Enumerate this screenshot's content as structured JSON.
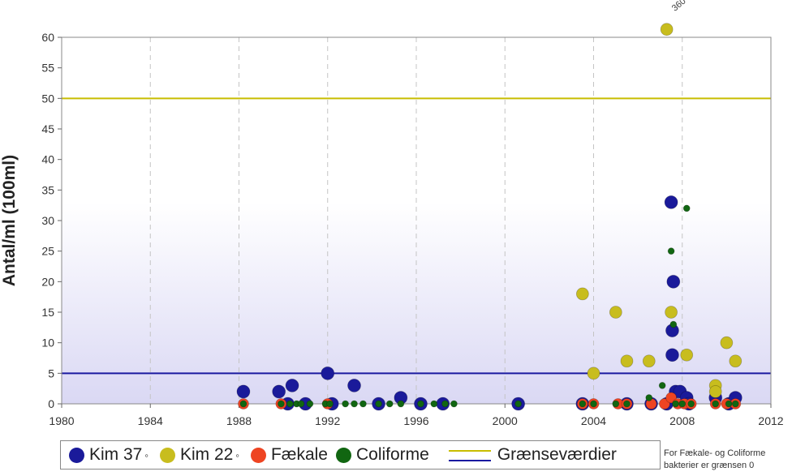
{
  "chart_data": {
    "type": "scatter",
    "ylabel": "Antal/ml (100ml)",
    "xlim": [
      1980,
      2012
    ],
    "ylim": [
      0,
      60
    ],
    "xticks": [
      1980,
      1984,
      1988,
      1992,
      1996,
      2000,
      2004,
      2008,
      2012
    ],
    "yticks": [
      0,
      5,
      10,
      15,
      20,
      25,
      30,
      35,
      40,
      45,
      50,
      55,
      60
    ],
    "grid": "vertical dashed",
    "legend_position": "bottom",
    "colors": {
      "kim37": "#1a1a9a",
      "kim22": "#c8bd1e",
      "faekale": "#ee4422",
      "coliforme": "#116611",
      "limit_kim22": "#c8bd00",
      "limit_kim37": "#1a1aa0"
    },
    "series": [
      {
        "name": "Kim 37°",
        "points": [
          [
            1988.2,
            2
          ],
          [
            1989.8,
            2
          ],
          [
            1990.2,
            0
          ],
          [
            1990.4,
            3
          ],
          [
            1991.0,
            0
          ],
          [
            1992.0,
            5
          ],
          [
            1992.2,
            0
          ],
          [
            1993.2,
            3
          ],
          [
            1994.3,
            0
          ],
          [
            1995.3,
            1
          ],
          [
            1996.2,
            0
          ],
          [
            1997.2,
            0
          ],
          [
            2000.6,
            0
          ],
          [
            2003.5,
            0
          ],
          [
            2005.5,
            0
          ],
          [
            2006.6,
            0
          ],
          [
            2007.3,
            0
          ],
          [
            2007.5,
            33
          ],
          [
            2007.6,
            20
          ],
          [
            2007.55,
            12
          ],
          [
            2007.55,
            8
          ],
          [
            2007.7,
            2
          ],
          [
            2007.9,
            2
          ],
          [
            2008.2,
            1
          ],
          [
            2008.3,
            0
          ],
          [
            2009.5,
            1
          ],
          [
            2010.1,
            0
          ],
          [
            2010.4,
            1
          ]
        ]
      },
      {
        "name": "Kim 22°",
        "points": [
          [
            2003.5,
            18
          ],
          [
            2004.0,
            5
          ],
          [
            2005.0,
            15
          ],
          [
            2005.5,
            7
          ],
          [
            2006.5,
            7
          ],
          [
            2007.3,
            61.3
          ],
          [
            2007.5,
            15
          ],
          [
            2008.2,
            8
          ],
          [
            2009.5,
            3
          ],
          [
            2009.5,
            2
          ],
          [
            2010.0,
            10
          ],
          [
            2010.4,
            7
          ]
        ]
      },
      {
        "name": "Fækale",
        "points": [
          [
            1988.2,
            0
          ],
          [
            1989.9,
            0
          ],
          [
            1992.0,
            0
          ],
          [
            2003.5,
            0
          ],
          [
            2004.0,
            0
          ],
          [
            2005.1,
            0
          ],
          [
            2005.5,
            0
          ],
          [
            2006.6,
            0
          ],
          [
            2007.2,
            0
          ],
          [
            2007.5,
            1
          ],
          [
            2007.8,
            0
          ],
          [
            2008.1,
            0
          ],
          [
            2008.4,
            0
          ],
          [
            2009.5,
            0
          ],
          [
            2010.0,
            0
          ],
          [
            2010.4,
            0
          ]
        ]
      },
      {
        "name": "Coliforme",
        "points": [
          [
            1988.2,
            0
          ],
          [
            1989.9,
            0
          ],
          [
            1990.3,
            0
          ],
          [
            1990.6,
            0
          ],
          [
            1990.8,
            0
          ],
          [
            1991.2,
            0
          ],
          [
            1991.9,
            0
          ],
          [
            1992.1,
            0
          ],
          [
            1992.8,
            0
          ],
          [
            1993.2,
            0
          ],
          [
            1993.6,
            0
          ],
          [
            1994.3,
            0
          ],
          [
            1994.8,
            0
          ],
          [
            1995.3,
            0
          ],
          [
            1996.2,
            0
          ],
          [
            1996.8,
            0
          ],
          [
            1997.3,
            0
          ],
          [
            1997.7,
            0
          ],
          [
            2000.6,
            0
          ],
          [
            2003.5,
            0
          ],
          [
            2004.0,
            0
          ],
          [
            2005.0,
            0
          ],
          [
            2005.5,
            0
          ],
          [
            2006.5,
            1
          ],
          [
            2007.1,
            3
          ],
          [
            2007.5,
            25
          ],
          [
            2007.6,
            13
          ],
          [
            2007.7,
            0
          ],
          [
            2008.0,
            0
          ],
          [
            2008.2,
            32
          ],
          [
            2008.4,
            0
          ],
          [
            2009.5,
            0
          ],
          [
            2010.1,
            0
          ],
          [
            2010.4,
            0
          ]
        ]
      }
    ],
    "reference_lines": [
      {
        "y": 50,
        "color": "#c8bd00"
      },
      {
        "y": 5,
        "color": "#1a1aa0"
      }
    ],
    "annotations": [
      {
        "text": "360",
        "x": 2007.3,
        "y": 61.3
      }
    ],
    "legend": {
      "items": [
        "Kim 37",
        "Kim 22",
        "Fækale",
        "Coliforme"
      ],
      "degree_mark": "◦",
      "line_label": "Grænseværdier"
    },
    "note": "For Fækale- og Coliforme bakterier er grænsen 0"
  }
}
